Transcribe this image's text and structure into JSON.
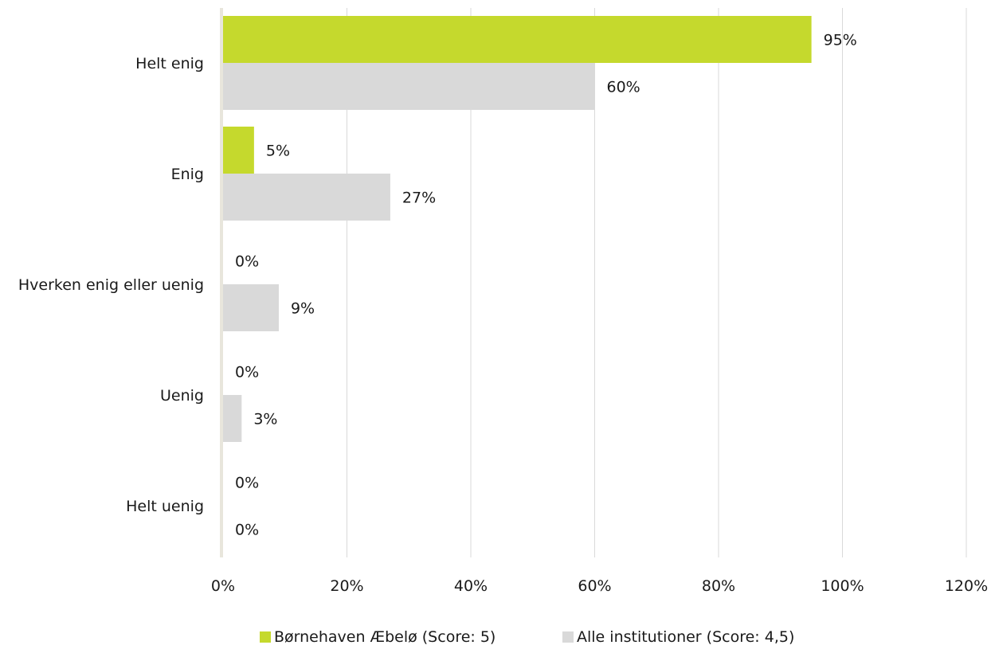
{
  "chart_data": {
    "type": "bar",
    "orientation": "horizontal",
    "categories": [
      "Helt enig",
      "Enig",
      "Hverken enig eller uenig",
      "Uenig",
      "Helt uenig"
    ],
    "series": [
      {
        "name": "Børnehaven Æbelø (Score: 5)",
        "values": [
          95,
          5,
          0,
          0,
          0
        ],
        "labels": [
          "95%",
          "5%",
          "0%",
          "0%",
          "0%"
        ],
        "color": "#c5d92d"
      },
      {
        "name": "Alle institutioner (Score: 4,5)",
        "values": [
          60,
          27,
          9,
          3,
          0
        ],
        "labels": [
          "60%",
          "27%",
          "9%",
          "3%",
          "0%"
        ],
        "color": "#d9d9d9"
      }
    ],
    "xlim": [
      0,
      120
    ],
    "xticks": [
      0,
      20,
      40,
      60,
      80,
      100,
      120
    ],
    "xtick_labels": [
      "0%",
      "20%",
      "40%",
      "60%",
      "80%",
      "100%",
      "120%"
    ],
    "grid": true,
    "legend_position": "bottom",
    "axis_color": "#e8e6dc",
    "grid_color": "#d9d9d9"
  }
}
